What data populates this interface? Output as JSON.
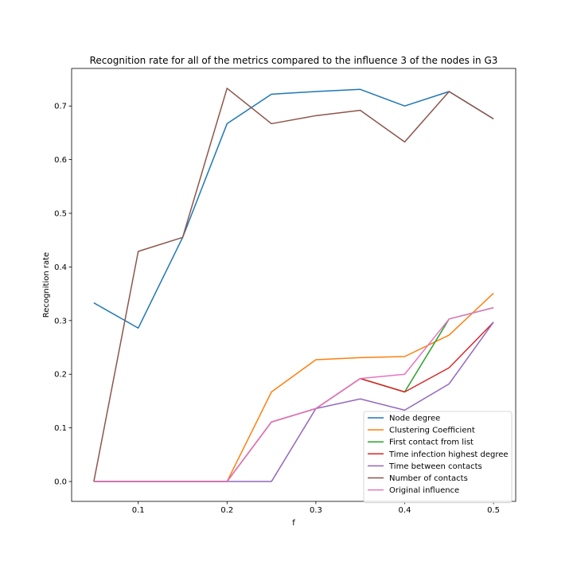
{
  "chart_data": {
    "type": "line",
    "title": "Recognition rate for all of the metrics compared to the influence 3 of the nodes in G3",
    "xlabel": "f",
    "ylabel": "Recognition rate",
    "xlim": [
      0.025,
      0.525
    ],
    "ylim": [
      -0.037,
      0.77
    ],
    "xticks": [
      0.1,
      0.2,
      0.3,
      0.4,
      0.5
    ],
    "xtick_labels": [
      "0.1",
      "0.2",
      "0.3",
      "0.4",
      "0.5"
    ],
    "yticks": [
      0.0,
      0.1,
      0.2,
      0.3,
      0.4,
      0.5,
      0.6,
      0.7
    ],
    "ytick_labels": [
      "0.0",
      "0.1",
      "0.2",
      "0.3",
      "0.4",
      "0.5",
      "0.6",
      "0.7"
    ],
    "grid": false,
    "legend_position": "lower-right",
    "x": [
      0.05,
      0.1,
      0.15,
      0.2,
      0.25,
      0.3,
      0.35,
      0.4,
      0.45,
      0.5
    ],
    "series": [
      {
        "name": "Node degree",
        "color": "#1f77b4",
        "values": [
          0.333,
          0.286,
          0.455,
          0.667,
          0.722,
          0.727,
          0.731,
          0.7,
          0.727,
          0.676
        ]
      },
      {
        "name": "Clustering Coefficient",
        "color": "#ff7f0e",
        "values": [
          0.0,
          0.0,
          0.0,
          0.0,
          0.167,
          0.227,
          0.231,
          0.233,
          0.273,
          0.351
        ]
      },
      {
        "name": "First contact from list",
        "color": "#2ca02c",
        "values": [
          0.0,
          0.0,
          0.0,
          0.0,
          0.111,
          0.136,
          0.192,
          0.167,
          0.303,
          0.324
        ]
      },
      {
        "name": "Time infection highest degree",
        "color": "#d62728",
        "values": [
          0.0,
          0.0,
          0.0,
          0.0,
          0.111,
          0.136,
          0.192,
          0.167,
          0.212,
          0.297
        ]
      },
      {
        "name": "Time between contacts",
        "color": "#9467bd",
        "values": [
          0.0,
          0.0,
          0.0,
          0.0,
          0.0,
          0.136,
          0.154,
          0.133,
          0.182,
          0.297
        ]
      },
      {
        "name": "Number of contacts",
        "color": "#8c564b",
        "values": [
          0.0,
          0.429,
          0.455,
          0.733,
          0.667,
          0.682,
          0.692,
          0.633,
          0.727,
          0.676
        ]
      },
      {
        "name": "Original influence",
        "color": "#e377c2",
        "values": [
          0.0,
          0.0,
          0.0,
          0.0,
          0.111,
          0.136,
          0.192,
          0.2,
          0.303,
          0.324
        ]
      }
    ]
  }
}
